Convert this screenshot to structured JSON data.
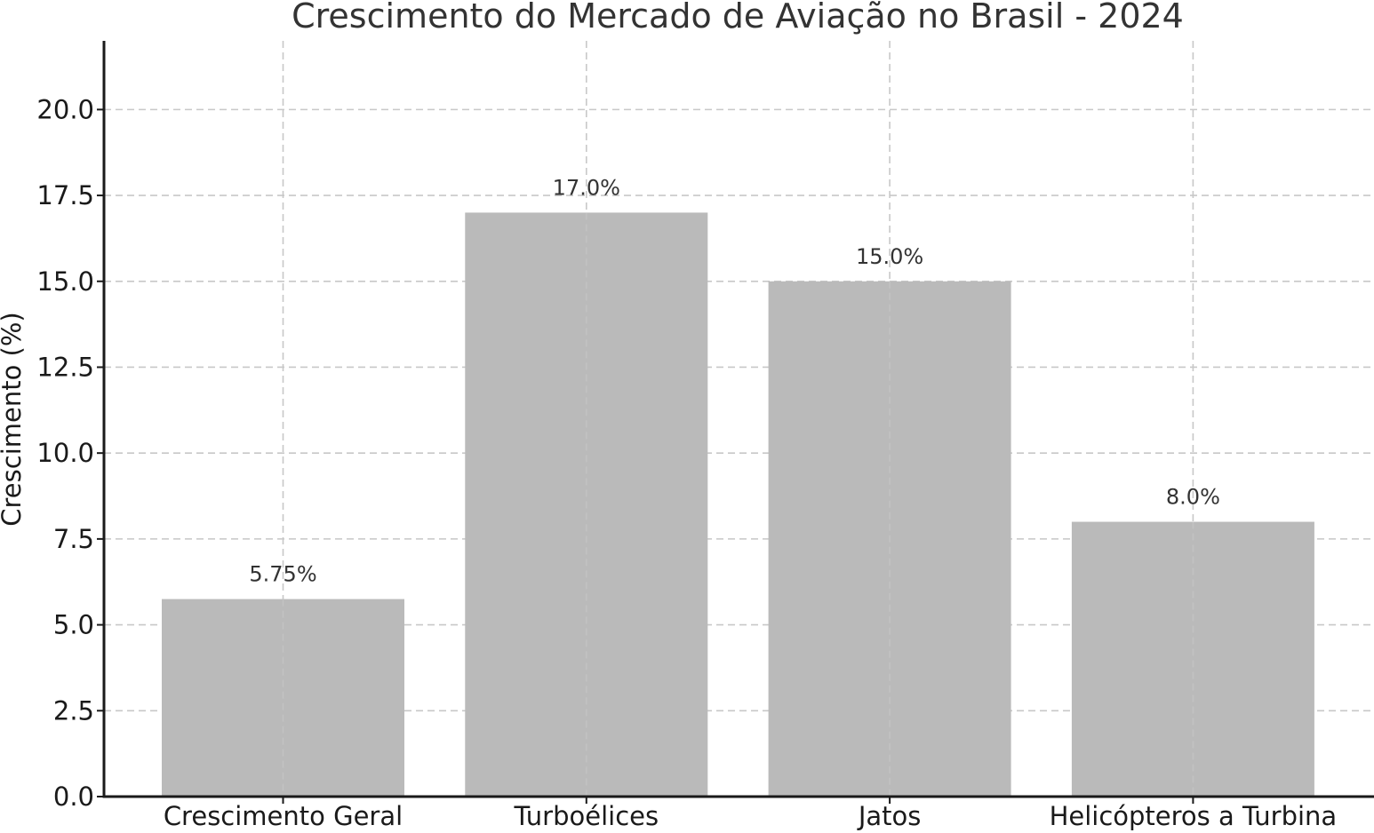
{
  "chart_data": {
    "type": "bar",
    "title": "Crescimento do Mercado de Aviação no Brasil - 2024",
    "xlabel": "",
    "ylabel": "Crescimento (%)",
    "categories": [
      "Crescimento Geral",
      "Turboélices",
      "Jatos",
      "Helicópteros a Turbina"
    ],
    "values": [
      5.75,
      17.0,
      15.0,
      8.0
    ],
    "data_labels": [
      "5.75%",
      "17.0%",
      "15.0%",
      "8.0%"
    ],
    "ylim": [
      0,
      22
    ],
    "yticks": [
      0.0,
      2.5,
      5.0,
      7.5,
      10.0,
      12.5,
      15.0,
      17.5,
      20.0
    ],
    "ytick_labels": [
      "0.0",
      "2.5",
      "5.0",
      "7.5",
      "10.0",
      "12.5",
      "15.0",
      "17.5",
      "20.0"
    ],
    "grid": true,
    "bar_color": "#bababa",
    "grid_color": "#c8c8c8",
    "axis_color": "#1a1a1a"
  }
}
